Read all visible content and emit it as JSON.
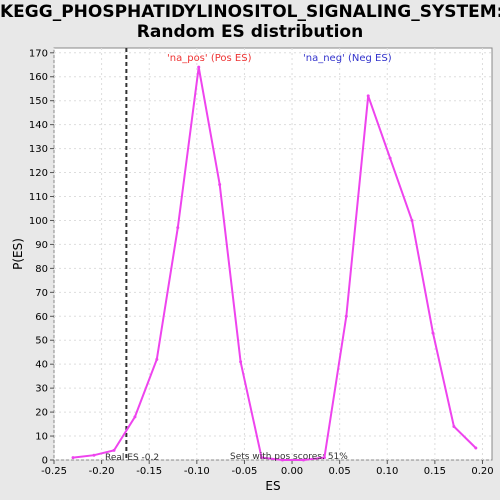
{
  "chart_data": {
    "type": "line",
    "title_line1": "KEGG_PHOSPHATIDYLINOSITOL_SIGNALING_SYSTEM:",
    "title_line2": "Random ES distribution",
    "xlabel": "ES",
    "ylabel": "P(ES)",
    "xlim": [
      -0.25,
      0.21
    ],
    "ylim": [
      0,
      172
    ],
    "x_ticks": [
      -0.25,
      -0.2,
      -0.15,
      -0.1,
      -0.05,
      0.0,
      0.05,
      0.1,
      0.15,
      0.2
    ],
    "x_tick_labels": [
      "-0.25",
      "-0.20",
      "-0.15",
      "-0.10",
      "-0.05",
      "0.00",
      "0.05",
      "0.10",
      "0.15",
      "0.20"
    ],
    "y_ticks": [
      0,
      10,
      20,
      30,
      40,
      50,
      60,
      70,
      80,
      90,
      100,
      110,
      120,
      130,
      140,
      150,
      160,
      170
    ],
    "grid": true,
    "line_color": "#ee44ee",
    "series": [
      {
        "x": [
          -0.23,
          -0.208,
          -0.187,
          -0.165,
          -0.142,
          -0.12,
          -0.098,
          -0.076,
          -0.054,
          -0.032,
          -0.01,
          0.012,
          0.034,
          0.057,
          0.08,
          0.103,
          0.126,
          0.148,
          0.17,
          0.193
        ],
        "values": [
          1,
          2,
          4,
          18,
          42,
          97,
          164,
          115,
          41,
          1,
          0,
          0,
          1,
          60,
          152,
          126,
          100,
          53,
          14,
          5
        ]
      }
    ],
    "legend": {
      "pos_label": "'na_pos' (Pos ES)",
      "pos_color": "#ee3333",
      "neg_label": "'na_neg' (Neg ES)",
      "neg_color": "#3333cc",
      "placement": "top"
    },
    "real_es": {
      "value": -0.174,
      "label": "Real ES -0.2"
    },
    "pos_scores_note": "Sets with pos scores: 51%"
  }
}
